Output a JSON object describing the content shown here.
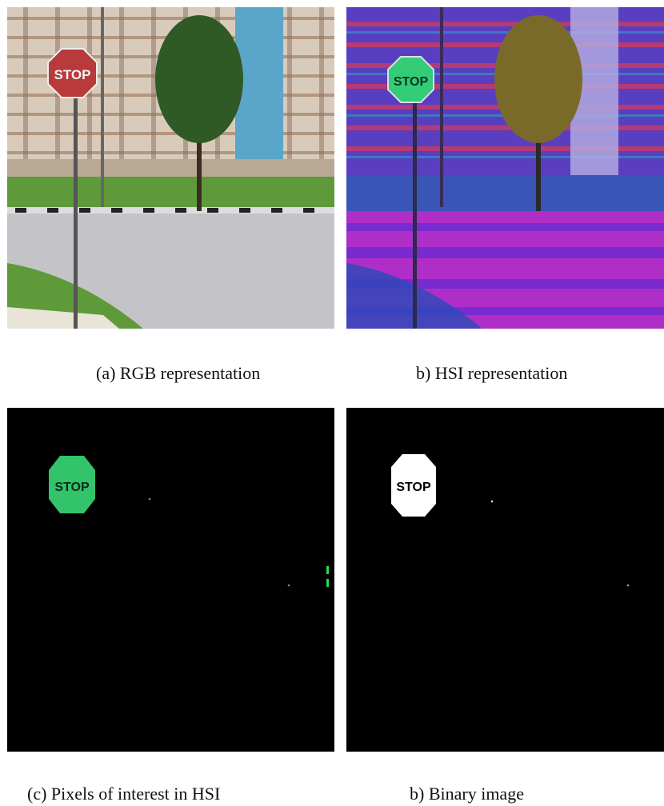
{
  "figures": [
    {
      "caption": "(a) RGB representation",
      "sign_text": "STOP",
      "colors": {
        "sign": "#b83a3a",
        "tree": "#2f5a26",
        "grass": "#5f9a3a",
        "road": "#c4c4c8",
        "building": "#d9cbbb",
        "blue_block": "#5aa6c8"
      }
    },
    {
      "caption": "b) HSI representation",
      "sign_text": "STOP",
      "colors": {
        "sign": "#33cc77",
        "tree": "#7a6a2a",
        "ground": "#b02ec8",
        "sky_band": "#3a55b8",
        "building": "#5a3ec0"
      }
    },
    {
      "caption": "(c) Pixels of interest in HSI",
      "sign_text": "STOP",
      "colors": {
        "background": "#000000",
        "sign": "#33c36a"
      }
    },
    {
      "caption": "b) Binary image",
      "sign_text": "STOP",
      "colors": {
        "background": "#000000",
        "sign": "#ffffff"
      }
    }
  ]
}
